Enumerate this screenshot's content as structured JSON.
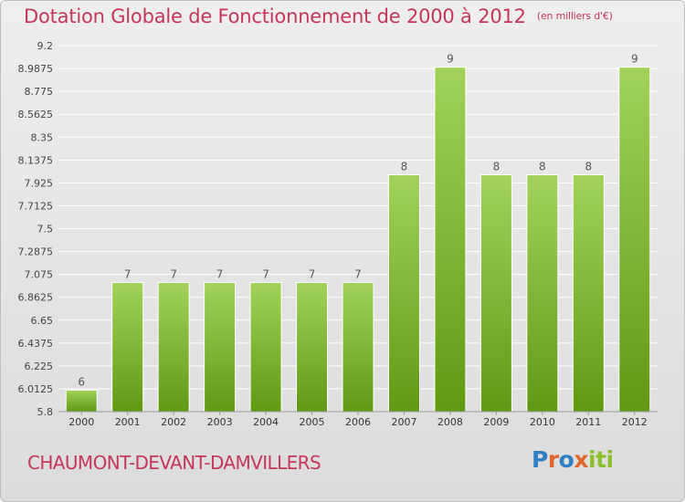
{
  "header": {
    "title": "Dotation Globale de Fonctionnement de 2000 à 2012",
    "unit": "(en milliers d'€)"
  },
  "footer": {
    "place": "CHAUMONT-DEVANT-DAMVILLERS",
    "logo_letters": [
      "P",
      "r",
      "o",
      "x",
      "i",
      "t",
      "i"
    ],
    "logo_colors": [
      "#2f7fc2",
      "#e2672f",
      "#8cbf2f"
    ]
  },
  "colors": {
    "title": "#c6365a",
    "bar_top": "#a2d25a",
    "bar_bottom": "#5f9a12",
    "grid": "#ffffff"
  },
  "chart_data": {
    "type": "bar",
    "categories": [
      "2000",
      "2001",
      "2002",
      "2003",
      "2004",
      "2005",
      "2006",
      "2007",
      "2008",
      "2009",
      "2010",
      "2011",
      "2012"
    ],
    "values": [
      6,
      7,
      7,
      7,
      7,
      7,
      7,
      8,
      9,
      8,
      8,
      8,
      9
    ],
    "value_labels": [
      "6",
      "7",
      "7",
      "7",
      "7",
      "7",
      "7",
      "8",
      "9",
      "8",
      "8",
      "8",
      "9"
    ],
    "yticks": [
      "5.8",
      "6.0125",
      "6.225",
      "6.4375",
      "6.65",
      "6.8625",
      "7.075",
      "7.2875",
      "7.5",
      "7.7125",
      "7.925",
      "8.1375",
      "8.35",
      "8.5625",
      "8.775",
      "8.9875",
      "9.2"
    ],
    "ylim": [
      5.8,
      9.2
    ],
    "grid": true,
    "legend": "none",
    "title": "Dotation Globale de Fonctionnement de 2000 à 2012",
    "xlabel": "",
    "ylabel": ""
  }
}
